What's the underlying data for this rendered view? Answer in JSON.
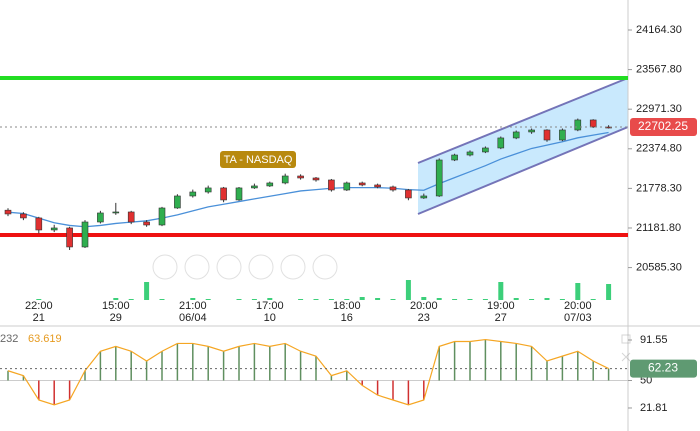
{
  "chart_data": [
    {
      "type": "candlestick",
      "ylim": [
        20097,
        24616
      ],
      "yticks": [
        {
          "value": 24164.3,
          "label": "24164.30"
        },
        {
          "value": 23567.8,
          "label": "23567.80"
        },
        {
          "value": 22971.3,
          "label": "22971.30"
        },
        {
          "value": 22374.8,
          "label": "22374.80"
        },
        {
          "value": 21778.3,
          "label": "21778.30"
        },
        {
          "value": 21181.8,
          "label": "21181.80"
        },
        {
          "value": 20585.3,
          "label": "20585.30"
        }
      ],
      "categories": [
        null,
        null,
        "22:00",
        null,
        null,
        null,
        null,
        "15:00",
        null,
        null,
        null,
        null,
        "21:00",
        null,
        null,
        null,
        null,
        "17:00",
        null,
        null,
        null,
        null,
        "18:00",
        null,
        null,
        null,
        null,
        "20:00",
        null,
        null,
        null,
        null,
        "19:00",
        null,
        null,
        null,
        null,
        "20:00",
        null,
        null
      ],
      "category_dates": [
        null,
        null,
        "21",
        null,
        null,
        null,
        null,
        "29",
        null,
        null,
        null,
        null,
        "06/04",
        null,
        null,
        null,
        null,
        "10",
        null,
        null,
        null,
        null,
        "16",
        null,
        null,
        null,
        null,
        "23",
        null,
        null,
        null,
        null,
        "27",
        null,
        null,
        null,
        null,
        "07/03",
        null,
        null
      ],
      "ohlc": [
        [
          21450,
          21480,
          21360,
          21393
        ],
        [
          21393,
          21420,
          21300,
          21333
        ],
        [
          21333,
          21350,
          21100,
          21152
        ],
        [
          21152,
          21230,
          21120,
          21182
        ],
        [
          21182,
          21200,
          20850,
          20896
        ],
        [
          20896,
          21300,
          20880,
          21272
        ],
        [
          21272,
          21440,
          21250,
          21408
        ],
        [
          21408,
          21560,
          21380,
          21423
        ],
        [
          21423,
          21440,
          21240,
          21272
        ],
        [
          21272,
          21300,
          21200,
          21227
        ],
        [
          21227,
          21500,
          21210,
          21483
        ],
        [
          21483,
          21690,
          21470,
          21664
        ],
        [
          21664,
          21760,
          21640,
          21724
        ],
        [
          21724,
          21820,
          21700,
          21785
        ],
        [
          21785,
          21800,
          21570,
          21604
        ],
        [
          21604,
          21800,
          21590,
          21785
        ],
        [
          21785,
          21850,
          21770,
          21815
        ],
        [
          21815,
          21880,
          21800,
          21860
        ],
        [
          21860,
          22000,
          21840,
          21965
        ],
        [
          21965,
          21990,
          21910,
          21935
        ],
        [
          21935,
          21950,
          21880,
          21905
        ],
        [
          21905,
          21920,
          21730,
          21754
        ],
        [
          21754,
          21880,
          21740,
          21860
        ],
        [
          21860,
          21880,
          21810,
          21830
        ],
        [
          21830,
          21850,
          21780,
          21800
        ],
        [
          21800,
          21820,
          21730,
          21754
        ],
        [
          21754,
          21770,
          21600,
          21634
        ],
        [
          21634,
          21700,
          21620,
          21664
        ],
        [
          21664,
          22230,
          21650,
          22206
        ],
        [
          22206,
          22300,
          22190,
          22281
        ],
        [
          22281,
          22350,
          22260,
          22327
        ],
        [
          22327,
          22410,
          22310,
          22387
        ],
        [
          22387,
          22560,
          22370,
          22538
        ],
        [
          22538,
          22650,
          22520,
          22628
        ],
        [
          22628,
          22680,
          22600,
          22658
        ],
        [
          22658,
          22670,
          22480,
          22507
        ],
        [
          22507,
          22680,
          22490,
          22658
        ],
        [
          22658,
          22830,
          22640,
          22809
        ],
        [
          22809,
          22820,
          22690,
          22703
        ],
        [
          22703,
          22730,
          22680,
          22702.25
        ]
      ],
      "up_color": "#2fae4f",
      "down_color": "#e03030",
      "ma": {
        "color": "#4a90d9",
        "values": [
          21420,
          21400,
          21330,
          21260,
          21220,
          21200,
          21220,
          21250,
          21270,
          21290,
          21330,
          21380,
          21440,
          21500,
          21540,
          21580,
          21620,
          21660,
          21700,
          21740,
          21760,
          21780,
          21790,
          21790,
          21790,
          21780,
          21760,
          21750,
          21850,
          21940,
          22030,
          22120,
          22220,
          22300,
          22380,
          22430,
          22480,
          22540,
          22580,
          22620
        ]
      },
      "volume": {
        "color": "#3ccf7a",
        "values": [
          0,
          0,
          1,
          0,
          0,
          0,
          0,
          2,
          1,
          18,
          1,
          0,
          2,
          1,
          0,
          1,
          1,
          2,
          0,
          1,
          1,
          1,
          1,
          3,
          2,
          1,
          20,
          3,
          2,
          1,
          1,
          1,
          18,
          2,
          1,
          2,
          1,
          17,
          1,
          16
        ]
      },
      "levels": [
        {
          "value": 23441,
          "color": "#22dd22"
        },
        {
          "value": 21076,
          "color": "#ee1111"
        }
      ],
      "last_color": "#e84b4b",
      "annotation": "TA - NASDAQ"
    },
    {
      "type": "bar",
      "ylim": [
        -1.8,
        101.8
      ],
      "yticks": [
        91.55,
        50,
        21.81
      ],
      "baseline": 50,
      "label_left": "232",
      "label_value": "63.619",
      "values": [
        60,
        55,
        30,
        25,
        30,
        60,
        80,
        85,
        80,
        70,
        80,
        88,
        88,
        85,
        80,
        85,
        88,
        85,
        88,
        80,
        75,
        55,
        60,
        45,
        35,
        30,
        25,
        30,
        85,
        90,
        90,
        92,
        90,
        88,
        85,
        70,
        75,
        80,
        70,
        62.23
      ],
      "up_color": "#5f8f5f",
      "down_color": "#d03030",
      "line_color": "#f5a623",
      "last_color": "#5f9a72"
    }
  ]
}
